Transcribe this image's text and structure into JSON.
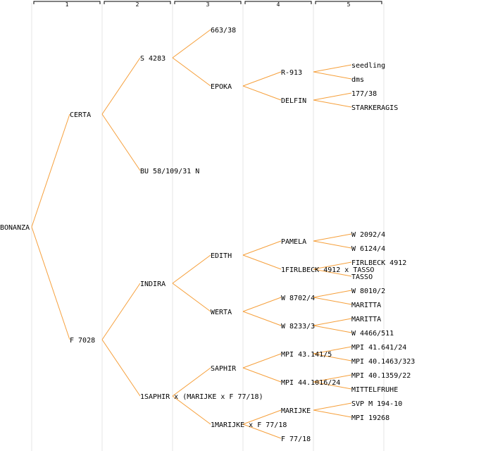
{
  "colors": {
    "edge": "#f6a03c",
    "guide": "#e6e6e6",
    "ruler": "#000000",
    "text": "#000000",
    "background": "#ffffff"
  },
  "generations": [
    "1",
    "2",
    "3",
    "4",
    "5"
  ],
  "nodes": [
    {
      "id": "n0",
      "label": "BONANZA",
      "gen": 0
    },
    {
      "id": "n1",
      "label": "CERTA",
      "gen": 1,
      "parent": "n0"
    },
    {
      "id": "n2",
      "label": "F 7028",
      "gen": 1,
      "parent": "n0"
    },
    {
      "id": "n3",
      "label": "S 4283",
      "gen": 2,
      "parent": "n1"
    },
    {
      "id": "n4",
      "label": "BU 58/109/31 N",
      "gen": 2,
      "parent": "n1"
    },
    {
      "id": "n5",
      "label": "663/38",
      "gen": 3,
      "parent": "n3"
    },
    {
      "id": "n6",
      "label": "EPOKA",
      "gen": 3,
      "parent": "n3"
    },
    {
      "id": "n7",
      "label": "R-913",
      "gen": 4,
      "parent": "n6"
    },
    {
      "id": "n8",
      "label": "DELFIN",
      "gen": 4,
      "parent": "n6"
    },
    {
      "id": "n9",
      "label": "seedling",
      "gen": 5,
      "parent": "n7"
    },
    {
      "id": "n10",
      "label": "dms",
      "gen": 5,
      "parent": "n7"
    },
    {
      "id": "n11",
      "label": "177/38",
      "gen": 5,
      "parent": "n8"
    },
    {
      "id": "n12",
      "label": "STARKERAGIS",
      "gen": 5,
      "parent": "n8"
    },
    {
      "id": "n13",
      "label": "INDIRA",
      "gen": 2,
      "parent": "n2"
    },
    {
      "id": "n14",
      "label": "1SAPHIR x (MARIJKE x F 77/18)",
      "gen": 2,
      "parent": "n2"
    },
    {
      "id": "n15",
      "label": "EDITH",
      "gen": 3,
      "parent": "n13"
    },
    {
      "id": "n16",
      "label": "WERTA",
      "gen": 3,
      "parent": "n13"
    },
    {
      "id": "n17",
      "label": "PAMELA",
      "gen": 4,
      "parent": "n15"
    },
    {
      "id": "n18",
      "label": "1FIRLBECK 4912 x TASSO",
      "gen": 4,
      "parent": "n15"
    },
    {
      "id": "n19",
      "label": "W 2092/4",
      "gen": 5,
      "parent": "n17"
    },
    {
      "id": "n20",
      "label": "W 6124/4",
      "gen": 5,
      "parent": "n17"
    },
    {
      "id": "n21",
      "label": "FIRLBECK 4912",
      "gen": 5,
      "parent": "n18"
    },
    {
      "id": "n22",
      "label": "TASSO",
      "gen": 5,
      "parent": "n18"
    },
    {
      "id": "n23",
      "label": "W 8702/4",
      "gen": 4,
      "parent": "n16"
    },
    {
      "id": "n24",
      "label": "W 8233/3",
      "gen": 4,
      "parent": "n16"
    },
    {
      "id": "n25",
      "label": "W 8010/2",
      "gen": 5,
      "parent": "n23"
    },
    {
      "id": "n26",
      "label": "MARITTA",
      "gen": 5,
      "parent": "n23"
    },
    {
      "id": "n27",
      "label": "MARITTA",
      "gen": 5,
      "parent": "n24"
    },
    {
      "id": "n28",
      "label": "W 4466/511",
      "gen": 5,
      "parent": "n24"
    },
    {
      "id": "n29",
      "label": "SAPHIR",
      "gen": 3,
      "parent": "n14"
    },
    {
      "id": "n30",
      "label": "1MARIJKE x F 77/18",
      "gen": 3,
      "parent": "n14"
    },
    {
      "id": "n31",
      "label": "MPI 43.141/5",
      "gen": 4,
      "parent": "n29"
    },
    {
      "id": "n32",
      "label": "MPI 44.1016/24",
      "gen": 4,
      "parent": "n29"
    },
    {
      "id": "n33",
      "label": "MPI 41.641/24",
      "gen": 5,
      "parent": "n31"
    },
    {
      "id": "n34",
      "label": "MPI 40.1463/323",
      "gen": 5,
      "parent": "n31"
    },
    {
      "id": "n35",
      "label": "MPI 40.1359/22",
      "gen": 5,
      "parent": "n32"
    },
    {
      "id": "n36",
      "label": "MITTELFRUHE",
      "gen": 5,
      "parent": "n32"
    },
    {
      "id": "n37",
      "label": "MARIJKE",
      "gen": 4,
      "parent": "n30"
    },
    {
      "id": "n38",
      "label": "F 77/18",
      "gen": 4,
      "parent": "n30"
    },
    {
      "id": "n39",
      "label": "SVP M 194-10",
      "gen": 5,
      "parent": "n37"
    },
    {
      "id": "n40",
      "label": "MPI 19268",
      "gen": 5,
      "parent": "n37"
    }
  ]
}
